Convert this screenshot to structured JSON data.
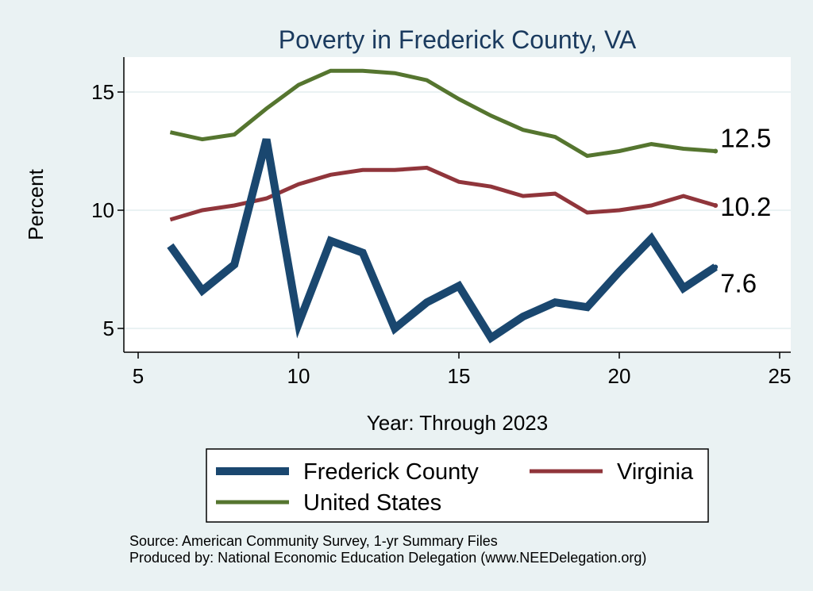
{
  "chart_data": {
    "type": "line",
    "title": "Poverty in Frederick County, VA",
    "xlabel": "Year: Through 2023",
    "ylabel": "Percent",
    "xlim": [
      5,
      25
    ],
    "ylim": [
      4.2,
      16.5
    ],
    "xticks": [
      5,
      10,
      15,
      20,
      25
    ],
    "yticks": [
      5,
      10,
      15
    ],
    "grid": "horizontal",
    "legend_position": "bottom",
    "series": [
      {
        "name": "Frederick County",
        "color": "#1a476f",
        "x": [
          6,
          7,
          8,
          9,
          10,
          11,
          12,
          13,
          14,
          15,
          16,
          17,
          18,
          19,
          20,
          21,
          22,
          23
        ],
        "values": [
          8.5,
          6.6,
          7.7,
          13.0,
          5.2,
          8.7,
          8.2,
          5.0,
          6.1,
          6.8,
          4.6,
          5.5,
          6.1,
          5.9,
          7.4,
          8.8,
          6.7,
          7.6
        ],
        "end_label": "7.6"
      },
      {
        "name": "Virginia",
        "color": "#90353b",
        "x": [
          6,
          7,
          8,
          9,
          10,
          11,
          12,
          13,
          14,
          15,
          16,
          17,
          18,
          19,
          20,
          21,
          22,
          23
        ],
        "values": [
          9.6,
          10.0,
          10.2,
          10.5,
          11.1,
          11.5,
          11.7,
          11.7,
          11.8,
          11.2,
          11.0,
          10.6,
          10.7,
          9.9,
          10.0,
          10.2,
          10.6,
          10.2
        ],
        "end_label": "10.2"
      },
      {
        "name": "United States",
        "color": "#55752f",
        "x": [
          6,
          7,
          8,
          9,
          10,
          11,
          12,
          13,
          14,
          15,
          16,
          17,
          18,
          19,
          20,
          21,
          22,
          23
        ],
        "values": [
          13.3,
          13.0,
          13.2,
          14.3,
          15.3,
          15.9,
          15.9,
          15.8,
          15.5,
          14.7,
          14.0,
          13.4,
          13.1,
          12.3,
          12.5,
          12.8,
          12.6,
          12.5
        ],
        "end_label": "12.5"
      }
    ],
    "legend": [
      "Frederick County",
      "Virginia",
      "United States"
    ]
  },
  "notes": {
    "source": "Source: American Community Survey, 1-yr Summary Files",
    "produced": "Produced by: National Economic Education Delegation (www.NEEDelegation.org)"
  },
  "colors": {
    "background": "#eaf2f3",
    "plot_area": "#ffffff",
    "grid": "#eaf2f3",
    "title": "#1a3a5e"
  }
}
